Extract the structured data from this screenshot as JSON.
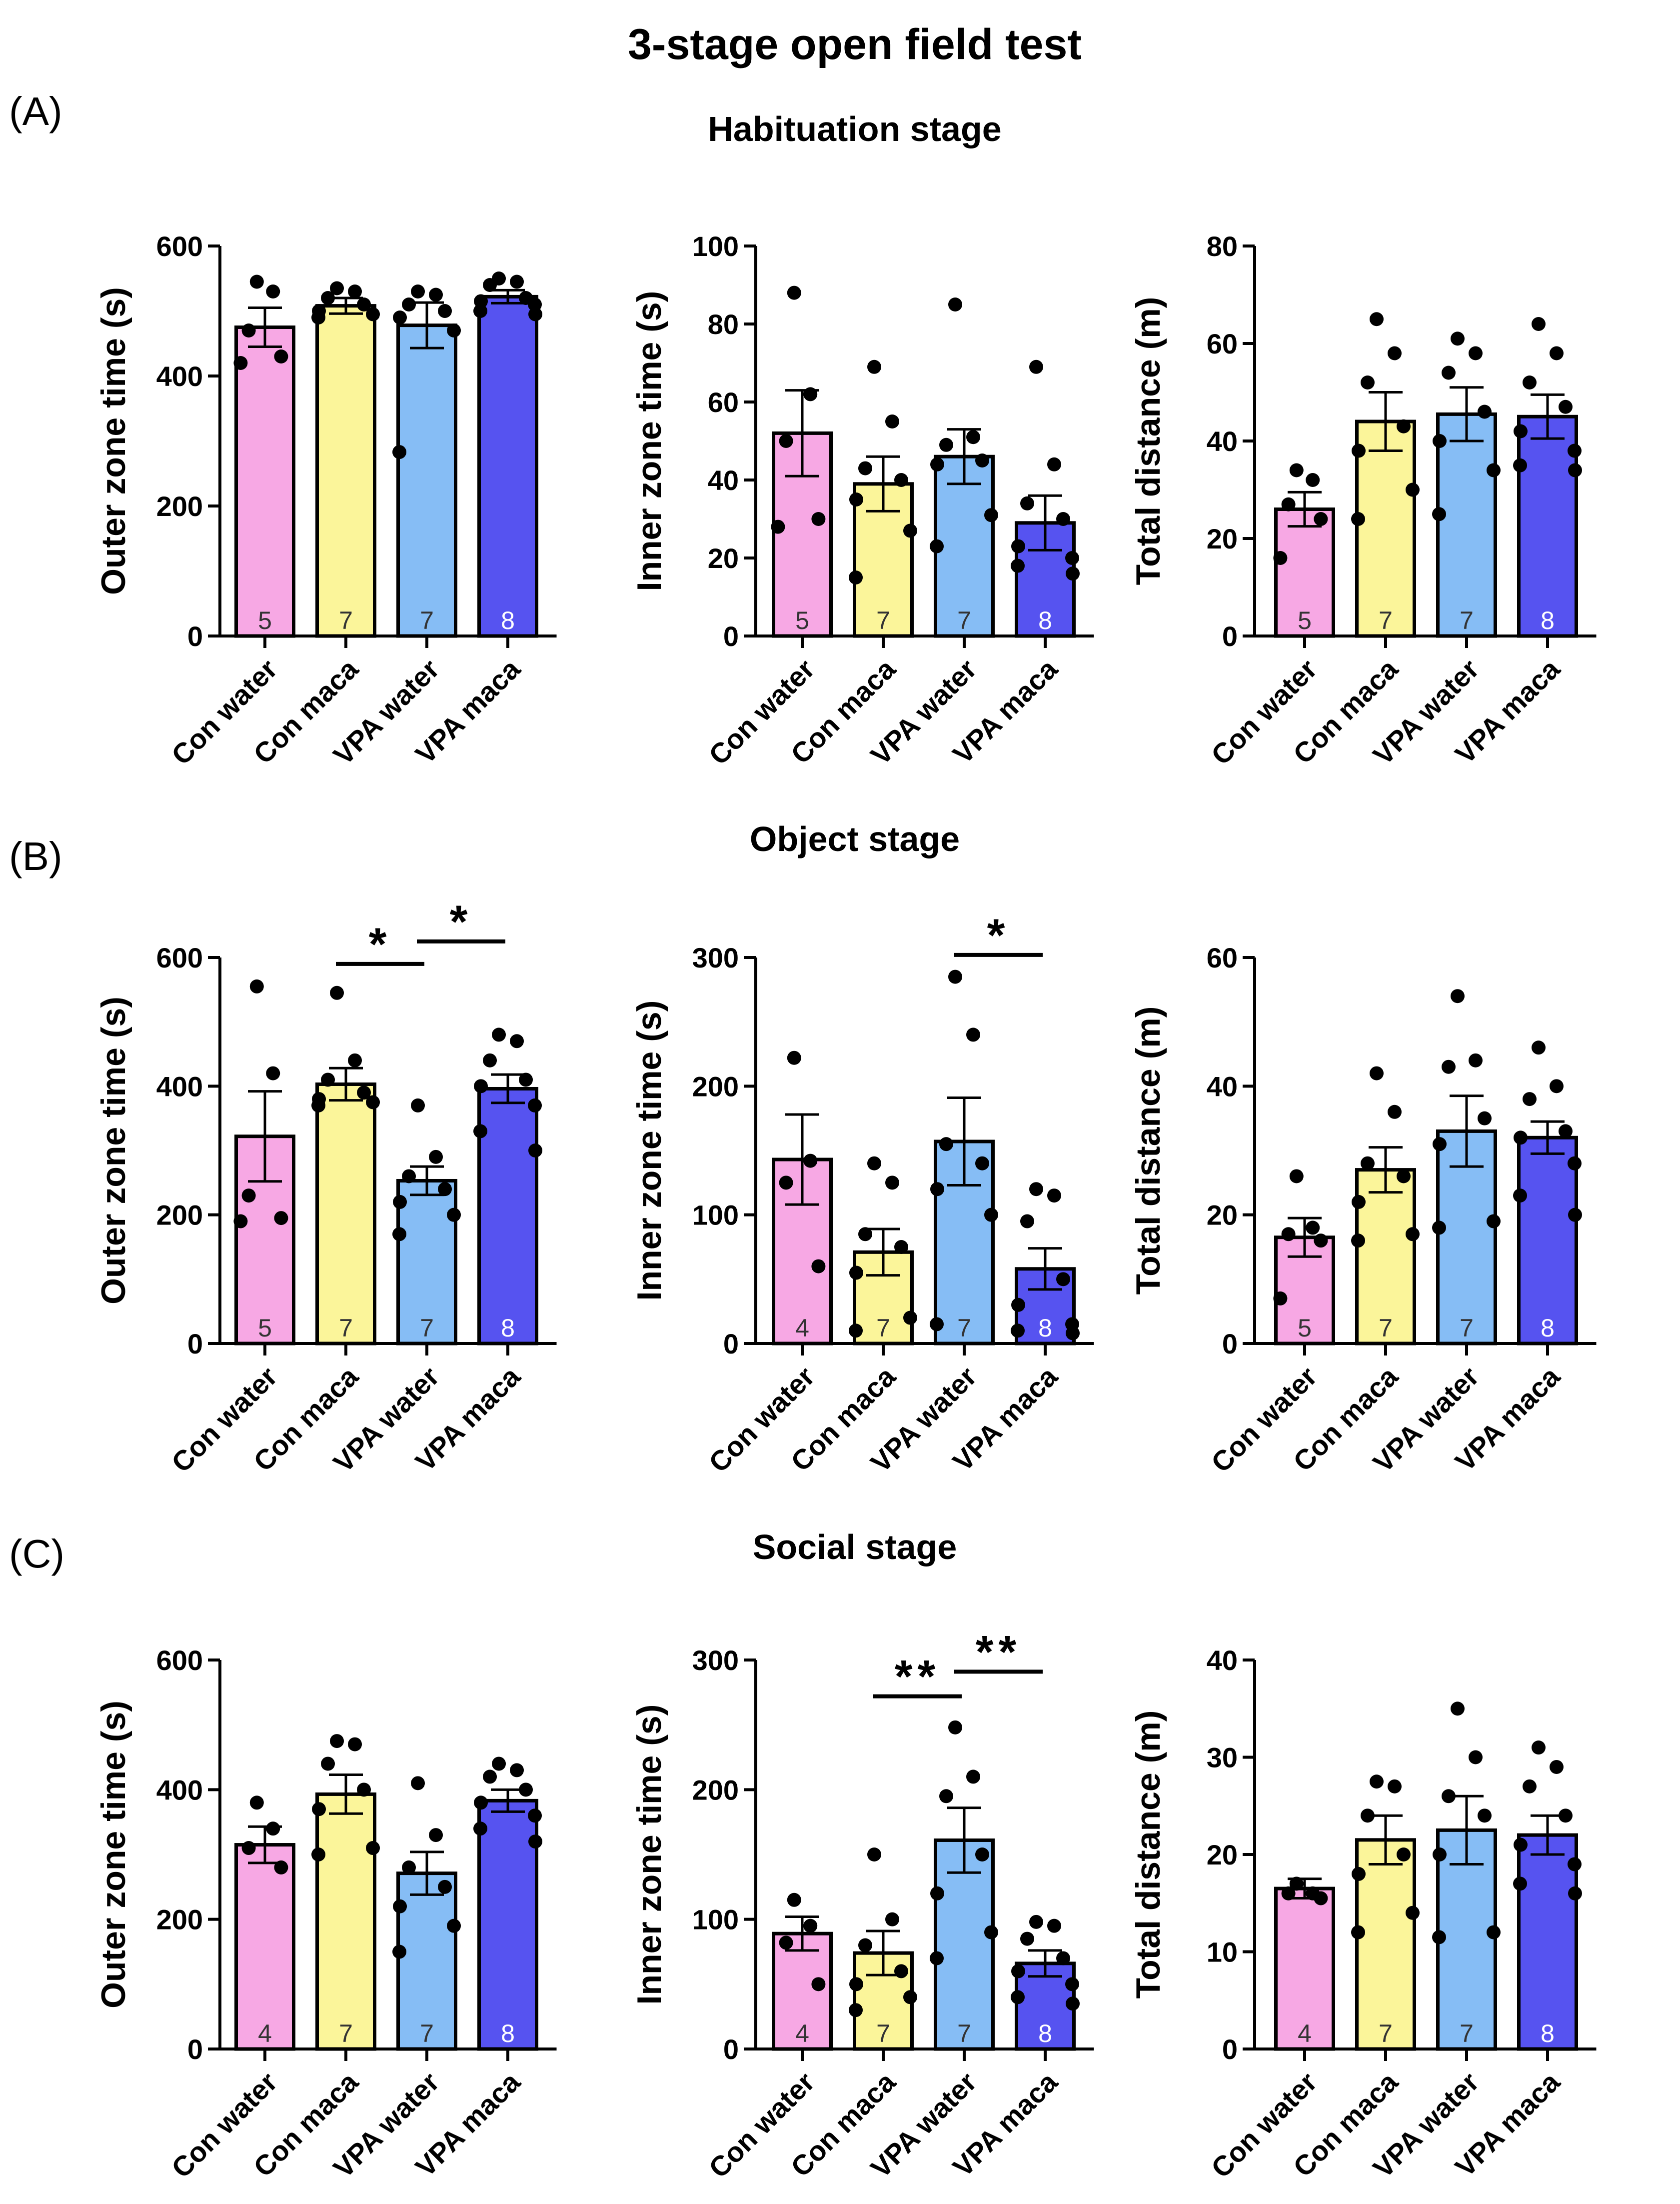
{
  "title": "3-stage open field test",
  "colors": {
    "con_water": "#F7A8E4",
    "con_maca": "#FBF59A",
    "vpa_water": "#86BDF5",
    "vpa_maca": "#5653F0",
    "dots": "#000000"
  },
  "panels": [
    {
      "letter": "(A)",
      "title": "Habituation stage"
    },
    {
      "letter": "(B)",
      "title": "Object stage"
    },
    {
      "letter": "(C)",
      "title": "Social stage"
    }
  ],
  "chart_data": [
    {
      "type": "bar",
      "panel": "A",
      "ylabel": "Outer zone time (s)",
      "categories": [
        "Con water",
        "Con maca",
        "VPA water",
        "VPA maca"
      ],
      "values": [
        475,
        508,
        478,
        522
      ],
      "errors": [
        30,
        12,
        35,
        10
      ],
      "n_labels": [
        "5",
        "7",
        "7",
        "8"
      ],
      "ylim": [
        0,
        600
      ],
      "yticks": [
        "0",
        "200",
        "400",
        "600"
      ],
      "points": [
        [
          545,
          530,
          470,
          430,
          420
        ],
        [
          535,
          530,
          520,
          510,
          500,
          495,
          490
        ],
        [
          530,
          525,
          510,
          500,
          490,
          470,
          283
        ],
        [
          550,
          545,
          540,
          520,
          515,
          510,
          500,
          495
        ]
      ],
      "significance": []
    },
    {
      "type": "bar",
      "panel": "A",
      "ylabel": "Inner zone time (s)",
      "categories": [
        "Con water",
        "Con maca",
        "VPA water",
        "VPA maca"
      ],
      "values": [
        52,
        39,
        46,
        29
      ],
      "errors": [
        11,
        7,
        7,
        7
      ],
      "n_labels": [
        "5",
        "7",
        "7",
        "8"
      ],
      "ylim": [
        0,
        100
      ],
      "yticks": [
        "0",
        "20",
        "40",
        "60",
        "80",
        "100"
      ],
      "points": [
        [
          88,
          62,
          50,
          30,
          28
        ],
        [
          69,
          55,
          43,
          40,
          35,
          27,
          15
        ],
        [
          85,
          51,
          49,
          45,
          44,
          31,
          23
        ],
        [
          69,
          44,
          34,
          30,
          23,
          20,
          18,
          16
        ]
      ],
      "significance": []
    },
    {
      "type": "bar",
      "panel": "A",
      "ylabel": "Total distance (m)",
      "categories": [
        "Con water",
        "Con maca",
        "VPA water",
        "VPA maca"
      ],
      "values": [
        26,
        44,
        45.5,
        45
      ],
      "errors": [
        3.5,
        6,
        5.5,
        4.5
      ],
      "n_labels": [
        "5",
        "7",
        "7",
        "8"
      ],
      "ylim": [
        0,
        80
      ],
      "yticks": [
        "0",
        "20",
        "40",
        "60",
        "80"
      ],
      "points": [
        [
          34,
          32,
          27,
          24,
          16
        ],
        [
          65,
          58,
          52,
          43,
          38,
          30,
          24
        ],
        [
          61,
          58,
          54,
          46,
          40,
          34,
          25
        ],
        [
          64,
          58,
          52,
          47,
          42,
          38,
          35,
          34
        ]
      ],
      "significance": []
    },
    {
      "type": "bar",
      "panel": "B",
      "ylabel": "Outer zone time (s)",
      "categories": [
        "Con water",
        "Con maca",
        "VPA water",
        "VPA maca"
      ],
      "values": [
        322,
        403,
        253,
        396
      ],
      "errors": [
        70,
        25,
        22,
        22
      ],
      "n_labels": [
        "5",
        "7",
        "7",
        "8"
      ],
      "ylim": [
        0,
        600
      ],
      "yticks": [
        "0",
        "200",
        "400",
        "600"
      ],
      "points": [
        [
          555,
          420,
          230,
          195,
          190
        ],
        [
          545,
          440,
          410,
          390,
          380,
          375,
          370
        ],
        [
          370,
          290,
          260,
          240,
          220,
          200,
          170
        ],
        [
          480,
          470,
          440,
          410,
          400,
          370,
          330,
          300
        ]
      ],
      "significance": [
        {
          "from": 1,
          "to": 2,
          "label": "*",
          "y": 590
        },
        {
          "from": 2,
          "to": 3,
          "label": "*",
          "y": 625
        }
      ]
    },
    {
      "type": "bar",
      "panel": "B",
      "ylabel": "Inner zone time (s)",
      "categories": [
        "Con water",
        "Con maca",
        "VPA water",
        "VPA maca"
      ],
      "values": [
        143,
        71,
        157,
        58
      ],
      "errors": [
        35,
        18,
        34,
        16
      ],
      "n_labels": [
        "4",
        "7",
        "7",
        "8"
      ],
      "ylim": [
        0,
        300
      ],
      "yticks": [
        "0",
        "100",
        "200",
        "300"
      ],
      "points": [
        [
          222,
          142,
          125,
          60
        ],
        [
          140,
          125,
          85,
          75,
          55,
          20,
          10
        ],
        [
          285,
          240,
          155,
          140,
          120,
          100,
          15
        ],
        [
          120,
          115,
          95,
          50,
          30,
          15,
          10,
          8
        ]
      ],
      "significance": [
        {
          "from": 2,
          "to": 3,
          "label": "*",
          "y": 302
        }
      ]
    },
    {
      "type": "bar",
      "panel": "B",
      "ylabel": "Total distance (m)",
      "categories": [
        "Con water",
        "Con maca",
        "VPA water",
        "VPA maca"
      ],
      "values": [
        16.5,
        27,
        33,
        32
      ],
      "errors": [
        3,
        3.5,
        5.5,
        2.5
      ],
      "n_labels": [
        "5",
        "7",
        "7",
        "8"
      ],
      "ylim": [
        0,
        60
      ],
      "yticks": [
        "0",
        "20",
        "40",
        "60"
      ],
      "points": [
        [
          26,
          18,
          17,
          16,
          7
        ],
        [
          42,
          36,
          28,
          26,
          22,
          17,
          16
        ],
        [
          54,
          44,
          43,
          35,
          31,
          19,
          18
        ],
        [
          46,
          40,
          38,
          33,
          32,
          28,
          23,
          20
        ]
      ],
      "significance": []
    },
    {
      "type": "bar",
      "panel": "C",
      "ylabel": "Outer zone time (s)",
      "categories": [
        "Con water",
        "Con maca",
        "VPA water",
        "VPA maca"
      ],
      "values": [
        315,
        393,
        271,
        383
      ],
      "errors": [
        28,
        30,
        33,
        17
      ],
      "n_labels": [
        "4",
        "7",
        "7",
        "8"
      ],
      "ylim": [
        0,
        600
      ],
      "yticks": [
        "0",
        "200",
        "400",
        "600"
      ],
      "points": [
        [
          380,
          340,
          310,
          280
        ],
        [
          475,
          470,
          440,
          400,
          370,
          310,
          300
        ],
        [
          410,
          330,
          280,
          250,
          220,
          190,
          150
        ],
        [
          440,
          430,
          420,
          400,
          380,
          360,
          340,
          320
        ]
      ],
      "significance": []
    },
    {
      "type": "bar",
      "panel": "C",
      "ylabel": "Inner zone time (s)",
      "categories": [
        "Con water",
        "Con maca",
        "VPA water",
        "VPA maca"
      ],
      "values": [
        89,
        74,
        161,
        66
      ],
      "errors": [
        13,
        17,
        25,
        10
      ],
      "n_labels": [
        "4",
        "7",
        "7",
        "8"
      ],
      "ylim": [
        0,
        300
      ],
      "yticks": [
        "0",
        "100",
        "200",
        "300"
      ],
      "points": [
        [
          115,
          95,
          82,
          50
        ],
        [
          150,
          100,
          80,
          60,
          50,
          40,
          30
        ],
        [
          248,
          210,
          195,
          150,
          120,
          90,
          70
        ],
        [
          98,
          95,
          85,
          70,
          60,
          50,
          40,
          35
        ]
      ],
      "significance": [
        {
          "from": 1,
          "to": 2,
          "label": "**",
          "y": 272
        },
        {
          "from": 2,
          "to": 3,
          "label": "**",
          "y": 291
        }
      ]
    },
    {
      "type": "bar",
      "panel": "C",
      "ylabel": "Total distance (m)",
      "categories": [
        "Con water",
        "Con maca",
        "VPA water",
        "VPA maca"
      ],
      "values": [
        16.5,
        21.5,
        22.5,
        22
      ],
      "errors": [
        1,
        2.5,
        3.5,
        2
      ],
      "n_labels": [
        "4",
        "7",
        "7",
        "8"
      ],
      "ylim": [
        0,
        40
      ],
      "yticks": [
        "0",
        "10",
        "20",
        "30",
        "40"
      ],
      "points": [
        [
          17,
          16,
          16,
          15.5
        ],
        [
          27.5,
          27,
          24,
          20,
          18,
          14,
          12
        ],
        [
          35,
          30,
          26,
          24,
          20,
          12,
          11.5
        ],
        [
          31,
          29,
          27,
          24,
          21,
          19,
          17,
          16
        ]
      ],
      "significance": []
    }
  ]
}
